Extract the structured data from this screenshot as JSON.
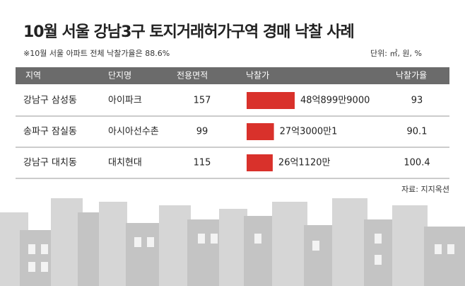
{
  "header": {
    "title": "10월 서울 강남3구 토지거래허가구역 경매 낙찰 사례",
    "note": "※10월 서울 아파트 전체 낙찰가율은 88.6%",
    "unit": "단위: ㎡, 원, %"
  },
  "table": {
    "columns": [
      "지역",
      "단지명",
      "전용면적",
      "낙찰가",
      "낙찰가율"
    ],
    "bar_color": "#d9312b",
    "rows": [
      {
        "region": "강남구 삼성동",
        "complex": "아이파크",
        "area": 157,
        "price": 4808999000,
        "price_label": "48억899만9000",
        "rate": 93
      },
      {
        "region": "송파구 잠실동",
        "complex": "아시아선수촌",
        "area": 99,
        "price": 2730000001,
        "price_label": "27억3000만1",
        "rate": 90.1
      },
      {
        "region": "강남구 대치동",
        "complex": "대치현대",
        "area": 115,
        "price": 2611200000,
        "price_label": "26억1120만",
        "rate": 100.4
      }
    ]
  },
  "footer": {
    "source": "자료: 지지옥션"
  }
}
